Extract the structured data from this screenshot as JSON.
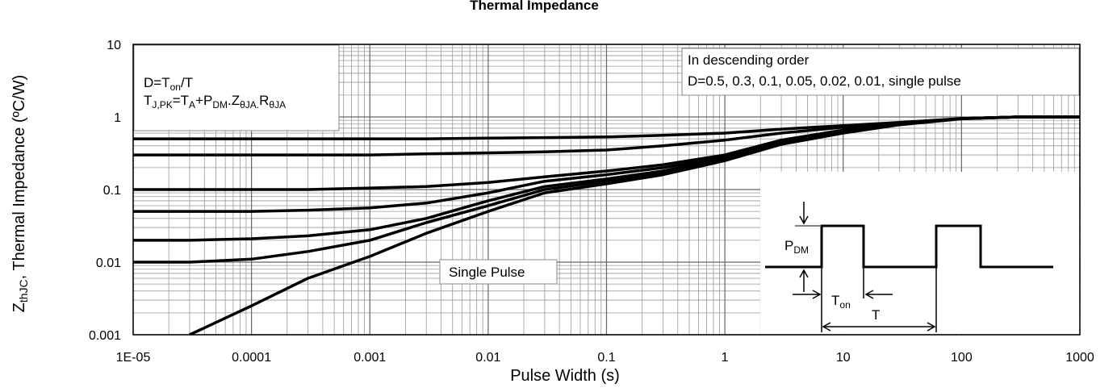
{
  "chart_data": {
    "type": "line",
    "title": "Thermal Impedance",
    "x_label": "Pulse Width (s)",
    "y_label": [
      "Z",
      "thJC",
      ", Thermal Impedance (ºC/W)"
    ],
    "log_x": true,
    "log_y": true,
    "grid": true,
    "minor_grid": true,
    "xlim": [
      1e-05,
      1000
    ],
    "ylim": [
      0.001,
      10
    ],
    "xticks": [
      {
        "value": 1e-05,
        "label": "1E-05"
      },
      0.0001,
      0.001,
      0.01,
      0.1,
      1,
      10,
      100,
      1000
    ],
    "yticks": [
      0.001,
      0.01,
      0.1,
      1,
      10
    ],
    "x": [
      1e-05,
      3e-05,
      0.0001,
      0.0003,
      0.001,
      0.003,
      0.01,
      0.03,
      0.1,
      0.3,
      1,
      3,
      10,
      30,
      100,
      300,
      1000
    ],
    "series": [
      {
        "color": "#000000",
        "values": [
          0.5,
          0.5,
          0.5,
          0.5,
          0.5,
          0.5,
          0.51,
          0.52,
          0.53,
          0.56,
          0.6,
          0.68,
          0.76,
          0.84,
          0.95,
          1,
          1
        ]
      },
      {
        "color": "#000000",
        "values": [
          0.3,
          0.3,
          0.3,
          0.3,
          0.3,
          0.31,
          0.32,
          0.33,
          0.35,
          0.4,
          0.48,
          0.6,
          0.72,
          0.82,
          0.95,
          1,
          1
        ]
      },
      {
        "color": "#000000",
        "values": [
          0.1,
          0.1,
          0.1,
          0.1,
          0.105,
          0.11,
          0.125,
          0.15,
          0.18,
          0.22,
          0.3,
          0.48,
          0.66,
          0.8,
          0.95,
          1,
          1
        ]
      },
      {
        "color": "#000000",
        "values": [
          0.05,
          0.05,
          0.05,
          0.052,
          0.056,
          0.065,
          0.09,
          0.13,
          0.16,
          0.2,
          0.28,
          0.45,
          0.64,
          0.8,
          0.95,
          1,
          1
        ]
      },
      {
        "color": "#000000",
        "values": [
          0.02,
          0.02,
          0.021,
          0.023,
          0.028,
          0.04,
          0.07,
          0.11,
          0.14,
          0.18,
          0.27,
          0.44,
          0.63,
          0.8,
          0.95,
          1,
          1
        ]
      },
      {
        "color": "#000000",
        "values": [
          0.01,
          0.01,
          0.011,
          0.014,
          0.02,
          0.035,
          0.06,
          0.1,
          0.13,
          0.17,
          0.26,
          0.43,
          0.62,
          0.79,
          0.95,
          1,
          1
        ]
      },
      {
        "color": "#000000",
        "values": [
          null,
          0.001,
          0.0025,
          0.006,
          0.012,
          0.025,
          0.05,
          0.09,
          0.12,
          0.16,
          0.25,
          0.42,
          0.6,
          0.78,
          0.94,
          1,
          1
        ]
      }
    ],
    "annotations": {
      "formula_1": [
        "D=T",
        "on",
        "/T"
      ],
      "formula_2": [
        "T",
        "J,PK",
        "=T",
        "A",
        "+P",
        "DM",
        ".Z",
        "θJA.",
        "R",
        "θJA"
      ],
      "order_1": "In descending order",
      "order_2": "D=0.5, 0.3, 0.1, 0.05, 0.02, 0.01, single pulse",
      "single_pulse": "Single Pulse",
      "inset_pdm": [
        "P",
        "DM"
      ],
      "inset_ton": [
        "T",
        "on"
      ],
      "inset_t": "T"
    }
  }
}
